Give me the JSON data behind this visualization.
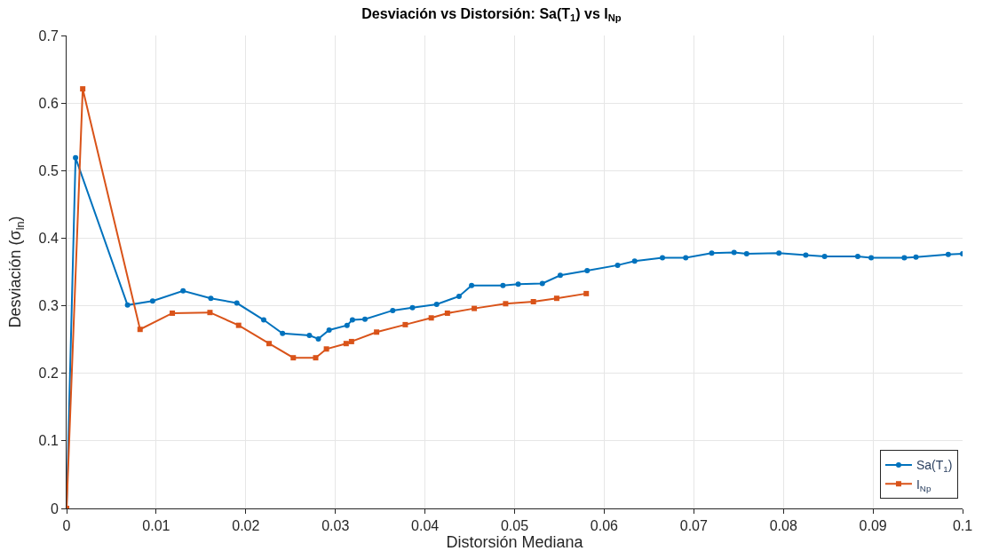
{
  "chart_data": {
    "type": "line",
    "title": "Desviación vs Distorsión: Sa(T$_{1}$) vs I$_{Np}$",
    "xlabel": "Distorsión Mediana",
    "ylabel": "Desviación (σ$_{ln}$)",
    "xlim": [
      0,
      0.1
    ],
    "xticks": [
      0,
      0.01,
      0.02,
      0.03,
      0.04,
      0.05,
      0.06,
      0.07,
      0.08,
      0.09,
      0.1
    ],
    "ylim": [
      0,
      0.7
    ],
    "yticks": [
      0,
      0.1,
      0.2,
      0.3,
      0.4,
      0.5,
      0.6,
      0.7
    ],
    "grid": true,
    "legend": "bottom right",
    "line_style": "solid",
    "series": [
      {
        "name": "Sa(T$_{1}$)",
        "color": "#0072bd",
        "marker": "circle",
        "x": [
          0,
          0.001,
          0.0068,
          0.0096,
          0.013,
          0.0161,
          0.019,
          0.022,
          0.0241,
          0.0271,
          0.0281,
          0.0293,
          0.0313,
          0.0319,
          0.0333,
          0.0364,
          0.0386,
          0.0413,
          0.0438,
          0.0452,
          0.0487,
          0.0504,
          0.0531,
          0.0551,
          0.0581,
          0.0615,
          0.0634,
          0.0665,
          0.0691,
          0.072,
          0.0745,
          0.0759,
          0.0795,
          0.0825,
          0.0846,
          0.0883,
          0.0898,
          0.0935,
          0.0948,
          0.0984,
          0.1
        ],
        "values": [
          0,
          0.519,
          0.301,
          0.307,
          0.322,
          0.311,
          0.304,
          0.279,
          0.259,
          0.256,
          0.251,
          0.264,
          0.271,
          0.279,
          0.28,
          0.293,
          0.297,
          0.302,
          0.314,
          0.33,
          0.33,
          0.332,
          0.333,
          0.345,
          0.352,
          0.36,
          0.366,
          0.371,
          0.371,
          0.378,
          0.379,
          0.377,
          0.378,
          0.375,
          0.373,
          0.373,
          0.371,
          0.371,
          0.372,
          0.376,
          0.377
        ]
      },
      {
        "name": "I$_{Np}$",
        "color": "#d95319",
        "marker": "square",
        "x": [
          0,
          0.0018,
          0.0082,
          0.0118,
          0.016,
          0.0192,
          0.0226,
          0.0253,
          0.0278,
          0.029,
          0.0312,
          0.0318,
          0.0346,
          0.0378,
          0.0407,
          0.0425,
          0.0455,
          0.049,
          0.0521,
          0.0547,
          0.058
        ],
        "values": [
          0,
          0.621,
          0.265,
          0.289,
          0.29,
          0.271,
          0.244,
          0.223,
          0.223,
          0.236,
          0.244,
          0.247,
          0.261,
          0.272,
          0.282,
          0.289,
          0.296,
          0.303,
          0.306,
          0.311,
          0.318
        ]
      }
    ]
  }
}
